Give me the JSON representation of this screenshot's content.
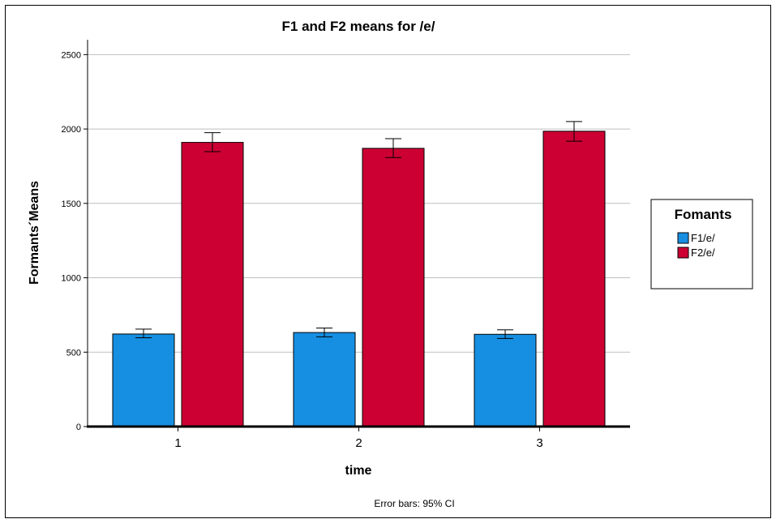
{
  "chart_data": {
    "type": "bar",
    "title": "F1 and F2 means for /e/",
    "xlabel": "time",
    "ylabel": "Formants´Means",
    "categories": [
      "1",
      "2",
      "3"
    ],
    "ylim": [
      0,
      2600
    ],
    "yticks": [
      0,
      500,
      1000,
      1500,
      2000,
      2500
    ],
    "grid": true,
    "series": [
      {
        "name": "F1/e/",
        "color": "#168fe2",
        "values": [
          622,
          632,
          620
        ],
        "ci_low": [
          597,
          603,
          592
        ],
        "ci_high": [
          655,
          662,
          650
        ]
      },
      {
        "name": "F2/e/",
        "color": "#cc0033",
        "values": [
          1910,
          1870,
          1985
        ],
        "ci_low": [
          1848,
          1808,
          1918
        ],
        "ci_high": [
          1975,
          1935,
          2050
        ]
      }
    ],
    "legend": {
      "title": "Fomants",
      "position": "right"
    },
    "note": "Error bars: 95% CI"
  }
}
